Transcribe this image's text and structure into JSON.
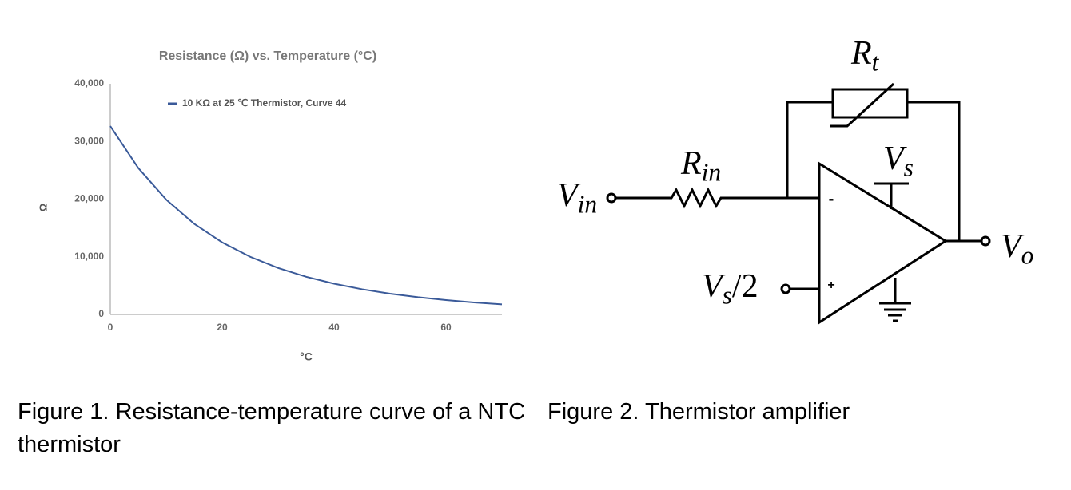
{
  "chart_data": {
    "type": "line",
    "title": "Resistance (Ω) vs. Temperature (°C)",
    "x_label": "°C",
    "y_label": "Ω",
    "x": [
      0,
      5,
      10,
      15,
      20,
      25,
      30,
      35,
      40,
      45,
      50,
      55,
      60,
      65,
      70
    ],
    "series": [
      {
        "name": "10 KΩ at 25 ℃ Thermistor, Curve 44",
        "color": "#3a5a99",
        "values": [
          32650,
          25390,
          19900,
          15710,
          12490,
          10000,
          8057,
          6531,
          5327,
          4369,
          3603,
          2986,
          2488,
          2083,
          1752
        ]
      }
    ],
    "xlim": [
      0,
      70
    ],
    "xticks": [
      0,
      20,
      40,
      60
    ],
    "ylim": [
      0,
      40000
    ],
    "yticks": [
      0,
      {
        "value": 10000,
        "label": "10,000"
      },
      {
        "value": 20000,
        "label": "20,000"
      },
      {
        "value": 30000,
        "label": "30,000"
      },
      {
        "value": 40000,
        "label": "40,000"
      }
    ],
    "legend": "top"
  },
  "captions": [
    "Figure 1. Resistance-temperature curve of a NTC thermistor",
    "Figure 2. Thermistor amplifier"
  ],
  "diagram": {
    "labels": {
      "rt": {
        "main": "R",
        "sub": "t"
      },
      "rin": {
        "main": "R",
        "sub": "in"
      },
      "vin": {
        "main": "V",
        "sub": "in"
      },
      "vs": {
        "main": "V",
        "sub": "s"
      },
      "vs2": {
        "main": "V",
        "sub": "s",
        "after": "/2"
      },
      "vo": {
        "main": "V",
        "sub": "o"
      },
      "minus": "-",
      "plus": "+"
    }
  }
}
